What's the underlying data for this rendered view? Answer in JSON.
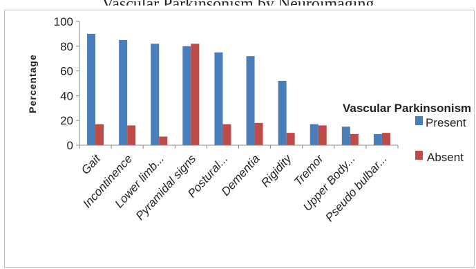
{
  "header_fragment": "Vascular Parkinsonism by Neuroimaging",
  "chart_data": {
    "type": "bar",
    "title": "",
    "xlabel": "",
    "ylabel": "Percentage",
    "ylim": [
      0,
      100
    ],
    "yticks": [
      0,
      20,
      40,
      60,
      80,
      100
    ],
    "grid": false,
    "legend_placement": "right",
    "legend_title": "Vascular Parkinsonism",
    "categories": [
      "Gait",
      "Incontinence",
      "Lower limb...",
      "Pyramidal signs",
      "Postural...",
      "Dementia",
      "Rigidity",
      "Tremor",
      "Upper Body...",
      "Pseudo bulbar..."
    ],
    "series": [
      {
        "name": "Present",
        "color": "#4a7ebb",
        "values": [
          90,
          85,
          82,
          80,
          75,
          72,
          52,
          17,
          15,
          9
        ]
      },
      {
        "name": "Absent",
        "color": "#be4b48",
        "values": [
          17,
          16,
          7,
          82,
          17,
          18,
          10,
          16,
          9,
          10
        ]
      }
    ]
  }
}
